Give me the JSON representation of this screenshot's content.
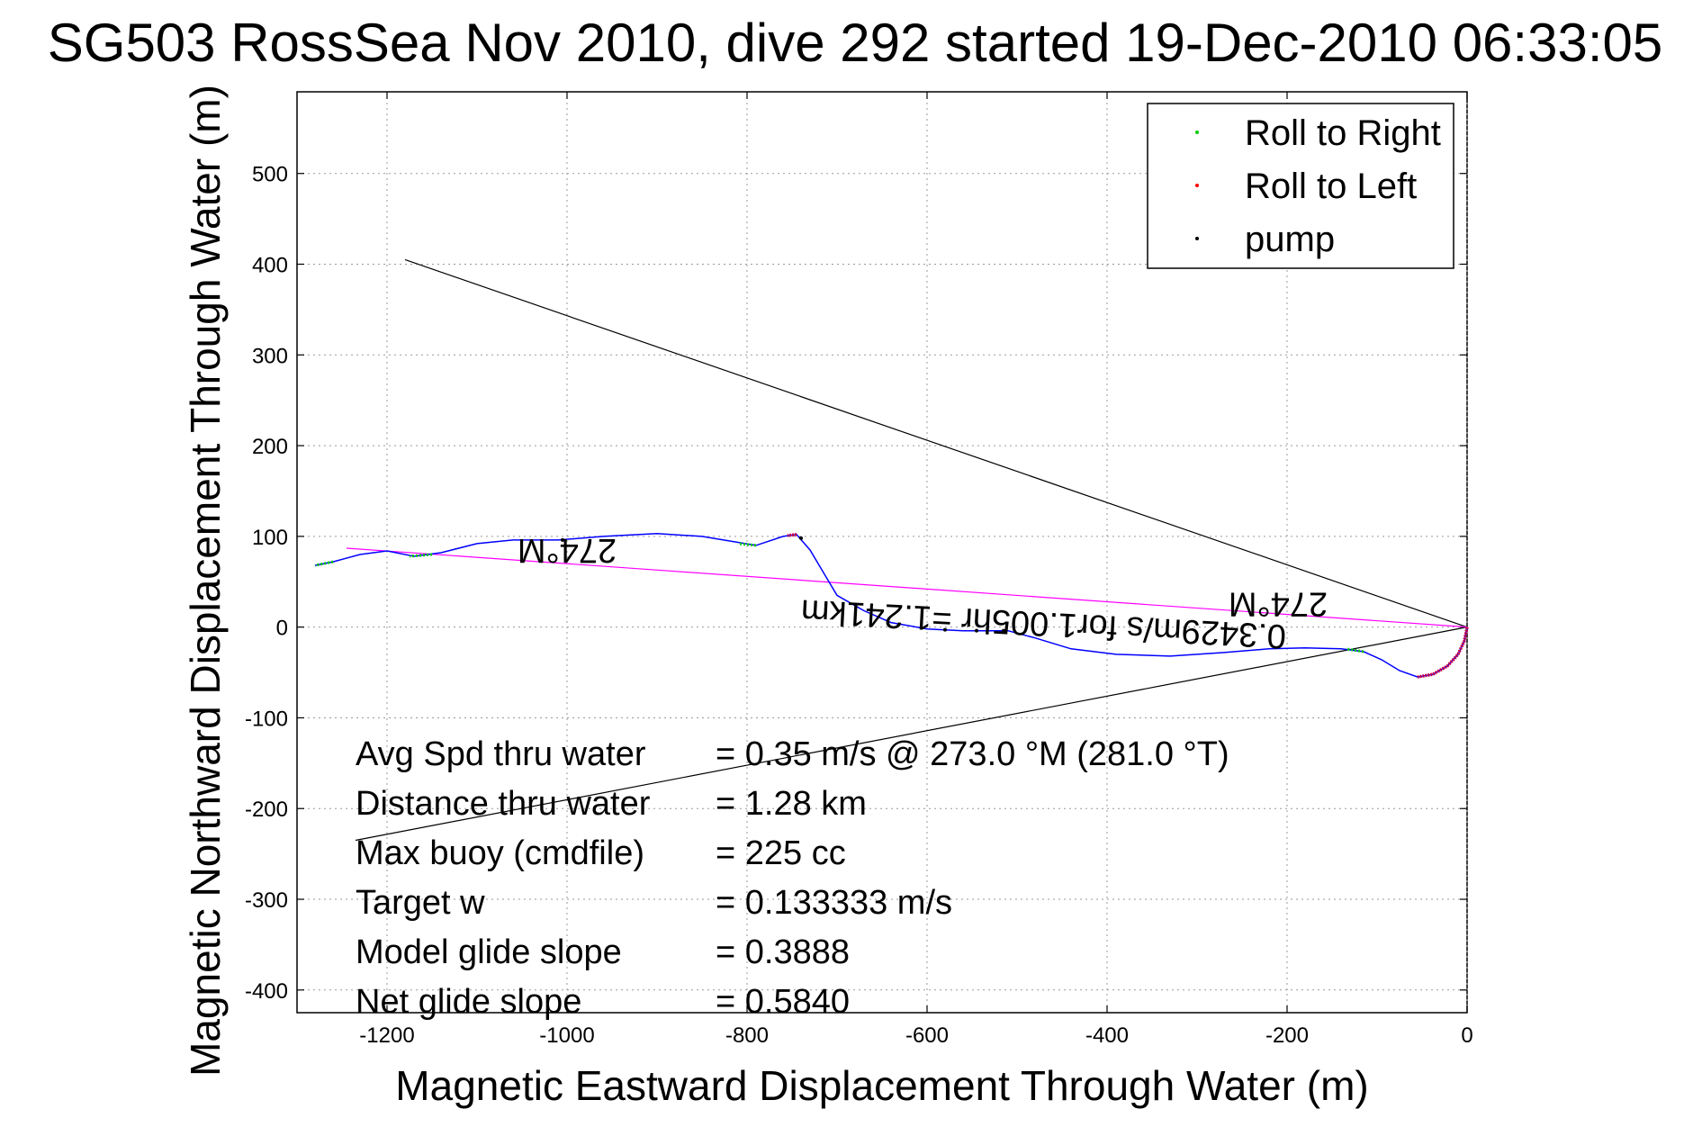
{
  "chart_data": {
    "type": "line",
    "title": "SG503 RossSea Nov 2010, dive 292 started 19-Dec-2010 06:33:05",
    "xlabel": "Magnetic Eastward Displacement Through Water (m)",
    "ylabel": "Magnetic Northward Displacement Through Water (m)",
    "xlim": [
      -1300,
      0
    ],
    "ylim": [
      -425,
      590
    ],
    "x_ticks": [
      -1200,
      -1000,
      -800,
      -600,
      -400,
      -200,
      0
    ],
    "x_tick_labels": [
      "-1200",
      "-1000",
      "-800",
      "-600",
      "-400",
      "-200",
      "0"
    ],
    "y_ticks": [
      -400,
      -300,
      -200,
      -100,
      0,
      100,
      200,
      300,
      400,
      500
    ],
    "y_tick_labels": [
      "-400",
      "-300",
      "-200",
      "-100",
      "0",
      "100",
      "200",
      "300",
      "400",
      "500"
    ],
    "grid": true,
    "legend_position": "top-right",
    "legend": [
      {
        "label": "Roll to Right",
        "color": "#00cc00"
      },
      {
        "label": "Roll to Left",
        "color": "#ff0000"
      },
      {
        "label": "pump",
        "color": "#000000"
      }
    ],
    "track": {
      "color": "#0000ff",
      "points": [
        [
          0,
          0
        ],
        [
          -3,
          -15
        ],
        [
          -10,
          -30
        ],
        [
          -22,
          -43
        ],
        [
          -38,
          -52
        ],
        [
          -55,
          -55
        ],
        [
          -75,
          -48
        ],
        [
          -95,
          -36
        ],
        [
          -115,
          -27
        ],
        [
          -140,
          -24
        ],
        [
          -180,
          -23
        ],
        [
          -220,
          -24
        ],
        [
          -270,
          -28
        ],
        [
          -330,
          -32
        ],
        [
          -390,
          -30
        ],
        [
          -440,
          -24
        ],
        [
          -480,
          -12
        ],
        [
          -510,
          -4
        ],
        [
          -560,
          -4
        ],
        [
          -600,
          -2
        ],
        [
          -640,
          5
        ],
        [
          -670,
          18
        ],
        [
          -700,
          35
        ],
        [
          -715,
          60
        ],
        [
          -730,
          85
        ],
        [
          -745,
          102
        ],
        [
          -760,
          100
        ],
        [
          -790,
          90
        ],
        [
          -820,
          95
        ],
        [
          -850,
          100
        ],
        [
          -900,
          103
        ],
        [
          -960,
          100
        ],
        [
          -1010,
          96
        ],
        [
          -1060,
          96
        ],
        [
          -1100,
          92
        ],
        [
          -1140,
          82
        ],
        [
          -1170,
          78
        ],
        [
          -1200,
          84
        ],
        [
          -1230,
          80
        ],
        [
          -1260,
          72
        ],
        [
          -1280,
          68
        ]
      ]
    },
    "roll_right_segments": [
      [
        [
          -115,
          -27
        ],
        [
          -135,
          -24
        ]
      ],
      [
        [
          -790,
          90
        ],
        [
          -810,
          92
        ]
      ],
      [
        [
          -1150,
          80
        ],
        [
          -1175,
          78
        ]
      ],
      [
        [
          -1260,
          72
        ],
        [
          -1280,
          68
        ]
      ]
    ],
    "roll_left_segments": [
      [
        [
          0,
          0
        ],
        [
          -3,
          -15
        ],
        [
          -10,
          -30
        ],
        [
          -22,
          -43
        ],
        [
          -38,
          -52
        ],
        [
          -55,
          -55
        ]
      ],
      [
        [
          -745,
          102
        ],
        [
          -755,
          101
        ]
      ]
    ],
    "pump_points": [
      [
        -515,
        -4
      ],
      [
        -545,
        -4
      ],
      [
        -580,
        -3
      ],
      [
        -740,
        98
      ],
      [
        -1005,
        96
      ]
    ],
    "heading_lines": [
      {
        "from": [
          0,
          0
        ],
        "to": [
          -1180,
          405
        ],
        "color": "#000000"
      },
      {
        "from": [
          0,
          0
        ],
        "to": [
          -1235,
          -235
        ],
        "color": "#000000"
      },
      {
        "from": [
          0,
          0
        ],
        "to": [
          -1245,
          87
        ],
        "color": "#ff00ff"
      }
    ],
    "annotations": [
      {
        "text": "274°M",
        "x": -1000,
        "y": 97,
        "rotation": 180
      },
      {
        "text": "274°M",
        "x": -210,
        "y": 38,
        "rotation": 180
      },
      {
        "text": "0.3429m/s for1.005hr =1.241km",
        "x": -470,
        "y": 16,
        "rotation": 183
      }
    ],
    "stats": [
      {
        "label": "Avg Spd thru water",
        "value": "=  0.35 m/s @ 273.0 °M (281.0 °T)"
      },
      {
        "label": "Distance thru water",
        "value": "=  1.28 km"
      },
      {
        "label": "Max buoy (cmdfile)",
        "value": "= 225 cc"
      },
      {
        "label": "Target w",
        "value": "= 0.133333 m/s"
      },
      {
        "label": "Model glide slope",
        "value": "= 0.3888"
      },
      {
        "label": "Net glide slope",
        "value": "= 0.5840"
      }
    ]
  }
}
